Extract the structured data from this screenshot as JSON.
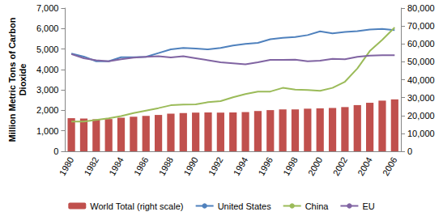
{
  "chart_data": {
    "type": "bar+line",
    "y_label": "Million Metric Tons of Carbon\nDioxide",
    "categories": [
      "1980",
      null,
      "1982",
      null,
      "1984",
      null,
      "1986",
      null,
      "1988",
      null,
      "1990",
      null,
      "1992",
      null,
      "1994",
      null,
      "1996",
      null,
      "1998",
      null,
      "2000",
      null,
      "2002",
      null,
      "2004",
      null,
      "2006"
    ],
    "series": [
      {
        "name": "World Total (right scale)",
        "type": "bar",
        "axis": "y2",
        "color": "#c0504d",
        "values": [
          18500,
          18300,
          17900,
          18000,
          18800,
          19300,
          19800,
          20300,
          21000,
          21400,
          21600,
          21700,
          21600,
          21700,
          21900,
          22500,
          23000,
          23400,
          23400,
          23800,
          24000,
          24200,
          24700,
          25800,
          27100,
          28300,
          29000
        ]
      },
      {
        "name": "United States",
        "type": "line",
        "color": "#4f81bd",
        "values": [
          4780,
          4630,
          4400,
          4400,
          4600,
          4600,
          4620,
          4800,
          4980,
          5050,
          5020,
          4980,
          5050,
          5170,
          5250,
          5300,
          5480,
          5550,
          5590,
          5680,
          5860,
          5760,
          5830,
          5870,
          5950,
          5980,
          5920
        ]
      },
      {
        "name": "China",
        "type": "line",
        "color": "#9bbb59",
        "values": [
          1450,
          1450,
          1530,
          1610,
          1720,
          1870,
          1990,
          2110,
          2250,
          2280,
          2290,
          2400,
          2450,
          2640,
          2800,
          2920,
          2920,
          3100,
          3020,
          3000,
          2960,
          3100,
          3400,
          4050,
          4900,
          5450,
          6050
        ]
      },
      {
        "name": "EU",
        "type": "line",
        "color": "#8064a2",
        "values": [
          4750,
          4550,
          4450,
          4400,
          4500,
          4580,
          4620,
          4650,
          4590,
          4650,
          4550,
          4450,
          4350,
          4300,
          4250,
          4350,
          4470,
          4470,
          4480,
          4400,
          4430,
          4520,
          4500,
          4620,
          4680,
          4700,
          4700
        ]
      }
    ],
    "ylim": [
      0,
      7000
    ],
    "yticks": [
      0,
      1000,
      2000,
      3000,
      4000,
      5000,
      6000,
      7000
    ],
    "y2lim": [
      0,
      80000
    ],
    "y2ticks": [
      0,
      10000,
      20000,
      30000,
      40000,
      50000,
      60000,
      70000,
      80000
    ],
    "grid": false,
    "legend": "bottom"
  }
}
